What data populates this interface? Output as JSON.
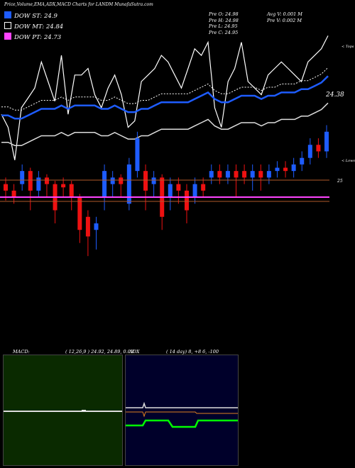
{
  "header": {
    "title": "Price,Volume,EMA,ADX,MACD Charts for LANDM MunafaSutra.com"
  },
  "legend": [
    {
      "label": "DOW ST: 24.9",
      "color": "#1e5cff"
    },
    {
      "label": "DOW MT: 24.84",
      "color": "#000000"
    },
    {
      "label": "DOW PT: 24.73",
      "color": "#ff66ff"
    }
  ],
  "stats": {
    "col1": [
      "Pre   O: 24.98",
      "Pre   H: 24.98",
      "Pre   L: 24.95",
      "Pre   C: 24.95"
    ],
    "col2": [
      "Avg V: 0.001  M",
      "Pre   V: 0.002  M"
    ]
  },
  "price_panel": {
    "top_label": "< Tops",
    "low_label": "< Lows",
    "last_price_label": "24.38",
    "right_level_label": "25"
  },
  "macd_panel": {
    "label": "MACD:",
    "values": "( 12,26,9 ) 24.92,  24.89,  0.03"
  },
  "adx_panel": {
    "label": "ADX",
    "values": "( 14  day) 8,  +8            6,  -100"
  },
  "colors": {
    "up": "#1e5cff",
    "down": "#ee1111",
    "white_line": "#ffffff",
    "ema_blue": "#1e5cff",
    "dow_pink": "#ff44ff",
    "level_line": "#b05a2a",
    "macd_bg": "#0a2a00",
    "adx_bg": "#00002a",
    "adx_green": "#00ff00",
    "adx_orange": "#e08020"
  },
  "chart_data": {
    "type": "line",
    "series": [
      {
        "values": [
          24.74,
          24.7,
          24.6,
          24.76,
          24.79,
          24.82,
          24.9,
          24.84,
          24.78,
          24.92,
          24.74,
          24.86,
          24.86,
          24.88,
          24.8,
          24.76,
          24.82,
          24.86,
          24.8,
          24.7,
          24.72,
          24.84,
          24.86,
          24.88,
          24.92,
          24.9,
          24.86,
          24.82,
          24.88,
          24.94,
          24.92,
          24.96,
          24.76,
          24.7,
          24.84,
          24.88,
          24.96,
          24.84,
          24.82,
          24.8,
          24.86,
          24.88,
          24.9,
          24.88,
          24.86,
          24.84,
          24.9,
          24.92,
          24.94,
          24.98
        ]
      },
      {
        "values": [
          24.78,
          24.78,
          24.77,
          24.77,
          24.78,
          24.79,
          24.8,
          24.8,
          24.8,
          24.81,
          24.8,
          24.81,
          24.81,
          24.81,
          24.81,
          24.8,
          24.8,
          24.81,
          24.8,
          24.79,
          24.79,
          24.8,
          24.8,
          24.81,
          24.82,
          24.82,
          24.82,
          24.82,
          24.82,
          24.83,
          24.84,
          24.85,
          24.83,
          24.82,
          24.82,
          24.83,
          24.84,
          24.84,
          24.84,
          24.83,
          24.84,
          24.84,
          24.85,
          24.85,
          24.85,
          24.86,
          24.86,
          24.87,
          24.88,
          24.9
        ]
      }
    ],
    "candles": [
      {
        "o": 24.7,
        "c": 24.68,
        "h": 24.72,
        "l": 24.65
      },
      {
        "o": 24.68,
        "c": 24.66,
        "h": 24.7,
        "l": 24.64
      },
      {
        "o": 24.7,
        "c": 24.74,
        "h": 24.76,
        "l": 24.68
      },
      {
        "o": 24.74,
        "c": 24.68,
        "h": 24.75,
        "l": 24.62
      },
      {
        "o": 24.68,
        "c": 24.72,
        "h": 24.74,
        "l": 24.66
      },
      {
        "o": 24.72,
        "c": 24.7,
        "h": 24.73,
        "l": 24.66
      },
      {
        "o": 24.7,
        "c": 24.62,
        "h": 24.71,
        "l": 24.58
      },
      {
        "o": 24.7,
        "c": 24.69,
        "h": 24.72,
        "l": 24.66
      },
      {
        "o": 24.7,
        "c": 24.66,
        "h": 24.71,
        "l": 24.62
      },
      {
        "o": 24.66,
        "c": 24.56,
        "h": 24.67,
        "l": 24.52
      },
      {
        "o": 24.6,
        "c": 24.54,
        "h": 24.62,
        "l": 24.48
      },
      {
        "o": 24.56,
        "c": 24.58,
        "h": 24.6,
        "l": 24.5
      },
      {
        "o": 24.66,
        "c": 24.74,
        "h": 24.76,
        "l": 24.62
      },
      {
        "o": 24.7,
        "c": 24.72,
        "h": 24.74,
        "l": 24.66
      },
      {
        "o": 24.72,
        "c": 24.7,
        "h": 24.73,
        "l": 24.66
      },
      {
        "o": 24.64,
        "c": 24.76,
        "h": 24.78,
        "l": 24.62
      },
      {
        "o": 24.74,
        "c": 24.84,
        "h": 24.86,
        "l": 24.72
      },
      {
        "o": 24.74,
        "c": 24.68,
        "h": 24.76,
        "l": 24.62
      },
      {
        "o": 24.7,
        "c": 24.72,
        "h": 24.74,
        "l": 24.66
      },
      {
        "o": 24.72,
        "c": 24.6,
        "h": 24.73,
        "l": 24.56
      },
      {
        "o": 24.66,
        "c": 24.7,
        "h": 24.72,
        "l": 24.62
      },
      {
        "o": 24.7,
        "c": 24.68,
        "h": 24.72,
        "l": 24.64
      },
      {
        "o": 24.68,
        "c": 24.62,
        "h": 24.7,
        "l": 24.58
      },
      {
        "o": 24.66,
        "c": 24.7,
        "h": 24.72,
        "l": 24.64
      },
      {
        "o": 24.7,
        "c": 24.68,
        "h": 24.72,
        "l": 24.66
      },
      {
        "o": 24.72,
        "c": 24.74,
        "h": 24.76,
        "l": 24.7
      },
      {
        "o": 24.74,
        "c": 24.72,
        "h": 24.76,
        "l": 24.7
      },
      {
        "o": 24.72,
        "c": 24.74,
        "h": 24.76,
        "l": 24.7
      },
      {
        "o": 24.74,
        "c": 24.72,
        "h": 24.76,
        "l": 24.66
      },
      {
        "o": 24.74,
        "c": 24.72,
        "h": 24.76,
        "l": 24.7
      },
      {
        "o": 24.72,
        "c": 24.74,
        "h": 24.76,
        "l": 24.68
      },
      {
        "o": 24.74,
        "c": 24.72,
        "h": 24.76,
        "l": 24.68
      },
      {
        "o": 24.72,
        "c": 24.74,
        "h": 24.76,
        "l": 24.7
      },
      {
        "o": 24.74,
        "c": 24.75,
        "h": 24.77,
        "l": 24.72
      },
      {
        "o": 24.75,
        "c": 24.74,
        "h": 24.77,
        "l": 24.72
      },
      {
        "o": 24.74,
        "c": 24.76,
        "h": 24.78,
        "l": 24.72
      },
      {
        "o": 24.76,
        "c": 24.78,
        "h": 24.8,
        "l": 24.74
      },
      {
        "o": 24.78,
        "c": 24.82,
        "h": 24.84,
        "l": 24.76
      },
      {
        "o": 24.82,
        "c": 24.8,
        "h": 24.84,
        "l": 24.78
      },
      {
        "o": 24.8,
        "c": 24.86,
        "h": 24.88,
        "l": 24.78
      }
    ],
    "ylim": [
      24.45,
      25.1
    ]
  }
}
